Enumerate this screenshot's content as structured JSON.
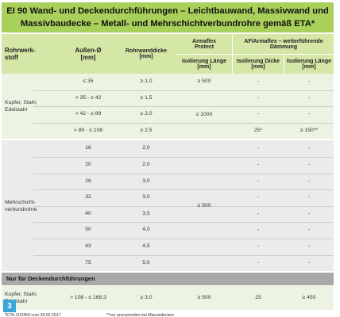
{
  "title": "EI 90 Wand- und Deckendurchführungen – Leichtbauwand, Massivwand und Massivbaudecke – Metall- und Mehrschichtverbundrohre gemäß ETA*",
  "header": {
    "col1": "Rohrwerk-\nstoff",
    "col2": "Außen-Ø\n[mm]",
    "col3": "Rohrwanddicke\n[mm]",
    "col4_top": "Armaflex\nProtect",
    "col56_top": "AF/Armaflex – weiterführende\nDämmung",
    "col4_sub": "Isolierung Länge\n[mm]",
    "col5_sub": "Isolierung Dicke\n[mm]",
    "col6_sub": "Isolierung Länge\n[mm]"
  },
  "groups": [
    {
      "name": "Kupfer, Stahl,\nEdelstahl",
      "rows": [
        {
          "diameter": "≤ 35",
          "wall": "≥ 1,0",
          "af_length": "≥ 500",
          "ins_thick": "-",
          "ins_length": "-"
        },
        {
          "diameter": "> 35 - ≤ 42",
          "wall": "≥ 1,5",
          "af_length": "",
          "ins_thick": "-",
          "ins_length": "-"
        },
        {
          "diameter": "> 42 - ≤ 89",
          "wall": "≥ 2,0",
          "af_length": "",
          "ins_thick": "-",
          "ins_length": "-"
        },
        {
          "diameter": "> 89 - ≤ 108",
          "wall": "≥ 2,5",
          "af_length": "",
          "ins_thick": "25*",
          "ins_length": "≥ 150**"
        }
      ],
      "merged_af_length": "≥ 1000"
    },
    {
      "name": "Mehrschicht-\nverbundrohre",
      "rows": [
        {
          "diameter": "16",
          "wall": "2,0",
          "ins_thick": "-",
          "ins_length": "-"
        },
        {
          "diameter": "20",
          "wall": "2,0",
          "ins_thick": "-",
          "ins_length": "-"
        },
        {
          "diameter": "26",
          "wall": "3,0",
          "ins_thick": "-",
          "ins_length": "-"
        },
        {
          "diameter": "32",
          "wall": "3,0",
          "ins_thick": "-",
          "ins_length": "-"
        },
        {
          "diameter": "40",
          "wall": "3,5",
          "ins_thick": "-",
          "ins_length": "-"
        },
        {
          "diameter": "50",
          "wall": "4,0",
          "ins_thick": "-",
          "ins_length": "-"
        },
        {
          "diameter": "63",
          "wall": "4,5",
          "ins_thick": "-",
          "ins_length": "-"
        },
        {
          "diameter": "75",
          "wall": "5,0",
          "ins_thick": "-",
          "ins_length": "-"
        }
      ],
      "merged_af_length": "≥ 500"
    }
  ],
  "section_header": "Nur für Deckendurchführungen",
  "deck_row": {
    "material": "Kupfer, Stahl,\nEdelstahl",
    "diameter": "> 108 - ≤ 168,3",
    "wall": "≥ 3,0",
    "af_length": "≥ 500",
    "ins_thick": "25",
    "ins_length": "≥ 450"
  },
  "footnote1": "*ETA-11/0454 vom 28.02.2017",
  "footnote2": "**nur anzuwenden bei Massivdecken",
  "figure_number": "3",
  "colors": {
    "title_bg": "#a8d05a",
    "header_bg": "#d4e7a7",
    "band_light": "#edf3e3",
    "band_gray": "#ebebeb",
    "section_bg": "#a9a9a9",
    "badge": "#3aa5d9"
  }
}
